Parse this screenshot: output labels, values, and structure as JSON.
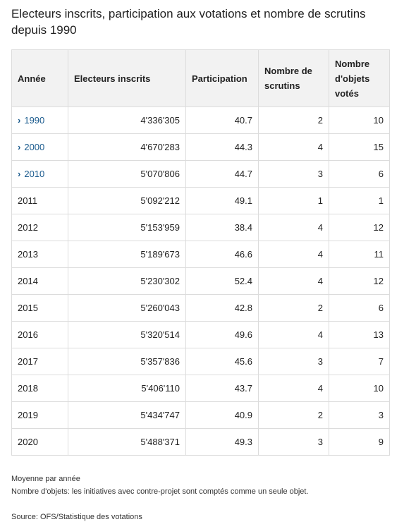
{
  "title": "Electeurs inscrits, participation aux votations et nombre de scrutins depuis 1990",
  "chart_data": {
    "type": "table",
    "columns": [
      "Année",
      "Electeurs inscrits",
      "Participation",
      "Nombre de scrutins",
      "Nombre d'objets votés"
    ],
    "rows": [
      {
        "year": "1990",
        "expandable": true,
        "voters": "4'336'305",
        "participation": "40.7",
        "scrutins": "2",
        "objets": "10"
      },
      {
        "year": "2000",
        "expandable": true,
        "voters": "4'670'283",
        "participation": "44.3",
        "scrutins": "4",
        "objets": "15"
      },
      {
        "year": "2010",
        "expandable": true,
        "voters": "5'070'806",
        "participation": "44.7",
        "scrutins": "3",
        "objets": "6"
      },
      {
        "year": "2011",
        "expandable": false,
        "voters": "5'092'212",
        "participation": "49.1",
        "scrutins": "1",
        "objets": "1"
      },
      {
        "year": "2012",
        "expandable": false,
        "voters": "5'153'959",
        "participation": "38.4",
        "scrutins": "4",
        "objets": "12"
      },
      {
        "year": "2013",
        "expandable": false,
        "voters": "5'189'673",
        "participation": "46.6",
        "scrutins": "4",
        "objets": "11"
      },
      {
        "year": "2014",
        "expandable": false,
        "voters": "5'230'302",
        "participation": "52.4",
        "scrutins": "4",
        "objets": "12"
      },
      {
        "year": "2015",
        "expandable": false,
        "voters": "5'260'043",
        "participation": "42.8",
        "scrutins": "2",
        "objets": "6"
      },
      {
        "year": "2016",
        "expandable": false,
        "voters": "5'320'514",
        "participation": "49.6",
        "scrutins": "4",
        "objets": "13"
      },
      {
        "year": "2017",
        "expandable": false,
        "voters": "5'357'836",
        "participation": "45.6",
        "scrutins": "3",
        "objets": "7"
      },
      {
        "year": "2018",
        "expandable": false,
        "voters": "5'406'110",
        "participation": "43.7",
        "scrutins": "4",
        "objets": "10"
      },
      {
        "year": "2019",
        "expandable": false,
        "voters": "5'434'747",
        "participation": "40.9",
        "scrutins": "2",
        "objets": "3"
      },
      {
        "year": "2020",
        "expandable": false,
        "voters": "5'488'371",
        "participation": "49.3",
        "scrutins": "3",
        "objets": "9"
      }
    ]
  },
  "notes": {
    "line1": "Moyenne par année",
    "line2": "Nombre d'objets: les initiatives avec contre-projet sont comptés comme un seule objet."
  },
  "source": "Source: OFS/Statistique des votations",
  "colors": {
    "link": "#1b5b8e",
    "header_bg": "#f2f2f2",
    "border": "#dcdcdc"
  },
  "icons": {
    "expand": "chevron-right-icon"
  }
}
